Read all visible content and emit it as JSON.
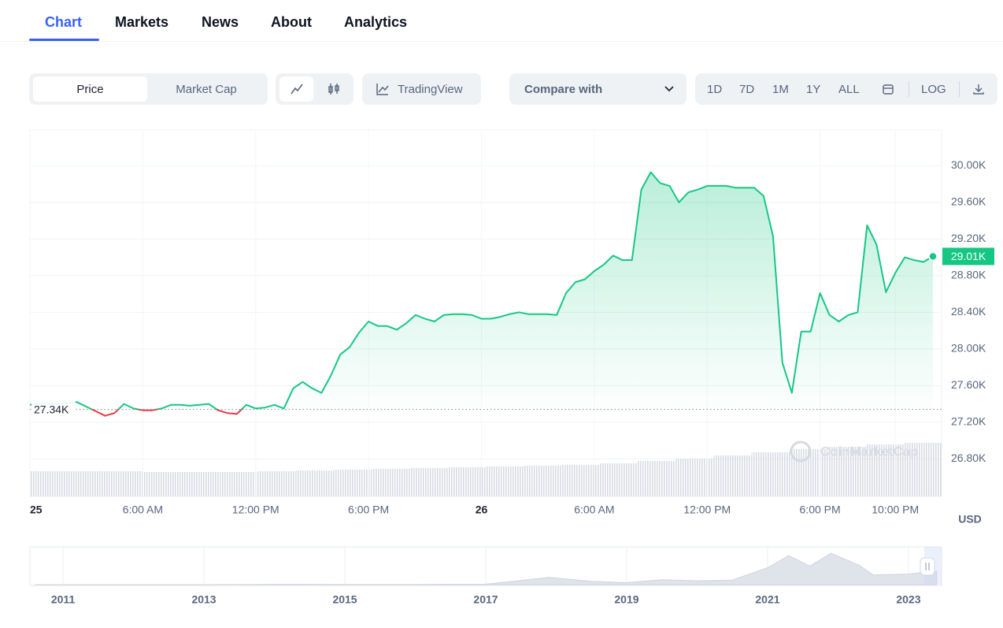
{
  "tabs": [
    "Chart",
    "Markets",
    "News",
    "About",
    "Analytics"
  ],
  "active_tab": 0,
  "toolbar": {
    "modes": [
      "Price",
      "Market Cap"
    ],
    "active_mode": 0,
    "tradingview": "TradingView",
    "compare": "Compare with",
    "ranges": [
      "1D",
      "7D",
      "1M",
      "1Y",
      "ALL"
    ],
    "log": "LOG"
  },
  "chart_data": [
    {
      "type": "line",
      "categories": [
        "25",
        null,
        null,
        null,
        null,
        null,
        null,
        null,
        null,
        null,
        null,
        null,
        "6:00 AM",
        null,
        null,
        null,
        null,
        null,
        null,
        null,
        null,
        null,
        null,
        null,
        "12:00 PM",
        null,
        null,
        null,
        null,
        null,
        null,
        null,
        null,
        null,
        null,
        null,
        "6:00 PM",
        null,
        null,
        null,
        null,
        null,
        null,
        null,
        null,
        null,
        null,
        null,
        "26",
        null,
        null,
        null,
        null,
        null,
        null,
        null,
        null,
        null,
        null,
        null,
        "6:00 AM",
        null,
        null,
        null,
        null,
        null,
        null,
        null,
        null,
        null,
        null,
        null,
        "12:00 PM",
        null,
        null,
        null,
        null,
        null,
        null,
        null,
        null,
        null,
        null,
        null,
        "6:00 PM",
        null,
        null,
        null,
        null,
        null,
        null,
        null,
        "10:00 PM",
        null,
        null,
        null,
        null
      ],
      "values": [
        27390,
        27400,
        27400,
        27400,
        27410,
        27420,
        27370,
        27320,
        27270,
        27300,
        27400,
        27350,
        27330,
        27330,
        27350,
        27390,
        27390,
        27380,
        27390,
        27400,
        27330,
        27300,
        27290,
        27390,
        27350,
        27360,
        27390,
        27350,
        27570,
        27640,
        27570,
        27520,
        27710,
        27940,
        28020,
        28180,
        28300,
        28250,
        28250,
        28210,
        28280,
        28370,
        28330,
        28300,
        28370,
        28380,
        28380,
        28370,
        28330,
        28330,
        28350,
        28380,
        28400,
        28380,
        28380,
        28380,
        28370,
        28610,
        28730,
        28760,
        28850,
        28920,
        29020,
        28970,
        28970,
        29740,
        29930,
        29810,
        29780,
        29600,
        29710,
        29740,
        29780,
        29780,
        29780,
        29760,
        29760,
        29760,
        29670,
        29230,
        27850,
        27520,
        28190,
        28190,
        28610,
        28370,
        28300,
        28370,
        28400,
        29350,
        29140,
        28620,
        28830,
        29000,
        28970,
        28950,
        29010
      ],
      "color": "#16c784",
      "down_color": "#ea3943",
      "ylim": [
        26390,
        30390
      ],
      "yticks": [
        {
          "value": 26800,
          "label": "26.80K"
        },
        {
          "value": 27200,
          "label": "27.20K"
        },
        {
          "value": 27600,
          "label": "27.60K"
        },
        {
          "value": 28000,
          "label": "28.00K"
        },
        {
          "value": 28400,
          "label": "28.40K"
        },
        {
          "value": 28800,
          "label": "28.80K"
        },
        {
          "value": 29200,
          "label": "29.20K"
        },
        {
          "value": 29600,
          "label": "29.60K"
        },
        {
          "value": 30000,
          "label": "30.00K"
        }
      ],
      "grid": true,
      "baseline": {
        "value": 27340,
        "label": "27.34K"
      },
      "current_price": {
        "value": 29010,
        "label": "29.01K"
      },
      "ylabel": "USD",
      "watermark": "CoinMarketCap",
      "volume": {
        "values": [
          32,
          32,
          32,
          31,
          31,
          31,
          32,
          33,
          34,
          35,
          36,
          37,
          38,
          39,
          40,
          42,
          45,
          48,
          52,
          56,
          60,
          63,
          66,
          68
        ],
        "ylim": [
          0,
          100
        ]
      }
    },
    {
      "type": "area",
      "x": [
        2010.6,
        2011.5,
        2012.5,
        2013.5,
        2014,
        2015,
        2016,
        2017,
        2017.9,
        2018.5,
        2019,
        2019.5,
        2020,
        2020.5,
        2021,
        2021.3,
        2021.6,
        2021.9,
        2022.3,
        2022.5,
        2023,
        2023.4
      ],
      "values": [
        0,
        10,
        10,
        100,
        600,
        300,
        400,
        1000,
        15000,
        7000,
        4000,
        10000,
        8000,
        9500,
        35000,
        60000,
        38000,
        65000,
        40000,
        20000,
        22000,
        28000
      ],
      "color": "#dfe3ea",
      "xlim": [
        2010.53,
        2023.47
      ],
      "ylim": [
        0,
        78000
      ],
      "xticks": [
        2011,
        2013,
        2015,
        2017,
        2019,
        2021,
        2023
      ]
    }
  ]
}
